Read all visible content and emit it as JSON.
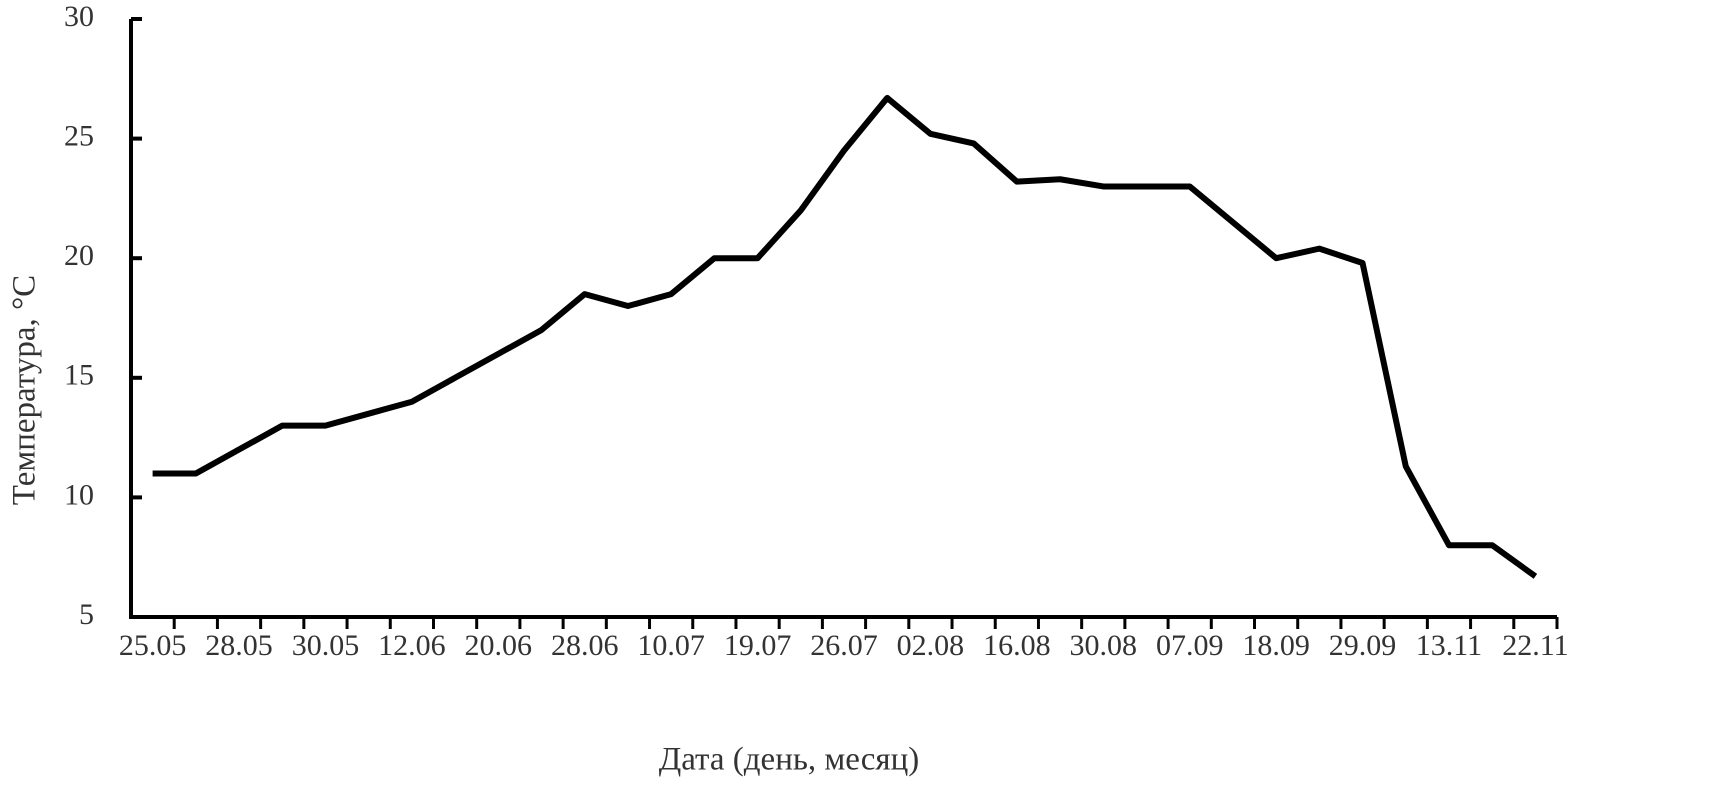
{
  "chart_data": {
    "type": "line",
    "x_label": "Дата (день, месяц)",
    "y_label": "Температура, °C",
    "categories": [
      "25.05",
      null,
      "28.05",
      null,
      "30.05",
      null,
      "12.06",
      null,
      "20.06",
      null,
      "28.06",
      null,
      "10.07",
      null,
      "19.07",
      null,
      "26.07",
      null,
      "02.08",
      null,
      "16.08",
      null,
      "30.08",
      null,
      "07.09",
      null,
      "18.09",
      null,
      "29.09",
      null,
      "13.11",
      null,
      "22.11"
    ],
    "series": [
      {
        "name": "Температура",
        "color": "#000000",
        "values": [
          11,
          11,
          12,
          13,
          13,
          13.5,
          14,
          15,
          16,
          17,
          18.5,
          18,
          18.5,
          20,
          20,
          22,
          24.5,
          26.7,
          25.2,
          24.8,
          23.2,
          23.3,
          23,
          23,
          23,
          21.5,
          20,
          20.4,
          19.8,
          11.3,
          8,
          8,
          6.7
        ]
      }
    ],
    "ylim": [
      5,
      30
    ],
    "yticks": [
      5,
      10,
      15,
      20,
      25,
      30
    ],
    "grid": false
  }
}
